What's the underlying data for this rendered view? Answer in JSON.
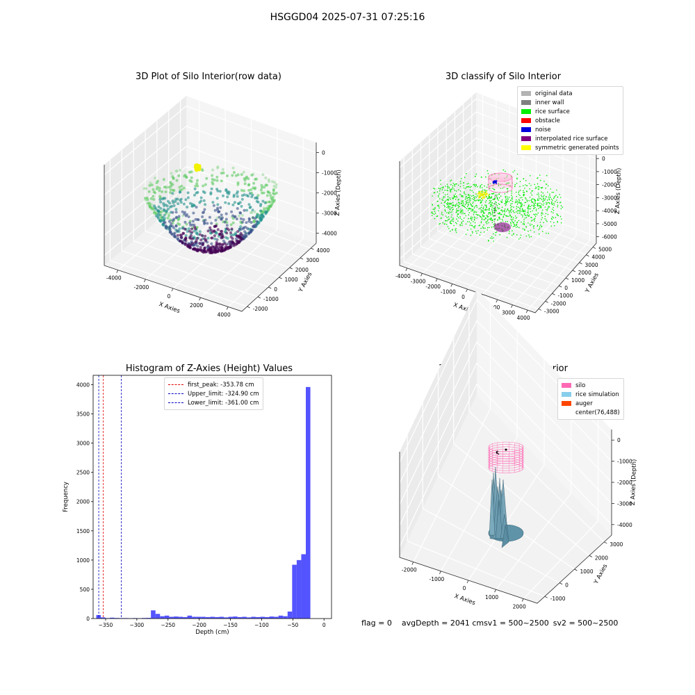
{
  "figure_title": "HSGGD04 2025-07-31 07:25:16",
  "status": {
    "flag": "flag = 0",
    "avg_depth": "avgDepth = 2041 cm",
    "sv1": "sv1 = 500~2500",
    "sv2": "sv2 = 500~2500"
  },
  "chart_data": [
    {
      "id": "raw",
      "type": "scatter",
      "title": "3D Plot of Silo Interior(row data)",
      "xlabel": "X Axies",
      "ylabel": "Y Axies",
      "zlabel": "Z Axies (Depth)",
      "x_ticks": [
        "-4000",
        "-2000",
        "0",
        "2000",
        "4000"
      ],
      "y_ticks": [
        "-2000",
        "-1000",
        "0",
        "1000",
        "2000",
        "3000",
        "4000"
      ],
      "z_ticks": [
        "0",
        "-1000",
        "-2000",
        "-3000",
        "-4000"
      ],
      "colormap": [
        "#440154",
        "#3b528b",
        "#21918c",
        "#5ec962",
        "#9fdba0"
      ],
      "highlight_color": "#f2f200"
    },
    {
      "id": "classify",
      "type": "scatter",
      "title": "3D classify of Silo Interior",
      "xlabel": "X Axies",
      "ylabel": "Y Axies",
      "zlabel": "Z Axies (Depth)",
      "x_ticks": [
        "-4000",
        "-3000",
        "-2000",
        "-1000",
        "0",
        "1000",
        "2000",
        "3000",
        "4000"
      ],
      "y_ticks": [
        "-3000",
        "-2000",
        "-1000",
        "0",
        "1000",
        "2000",
        "3000",
        "4000",
        "5000"
      ],
      "z_ticks": [
        "1000",
        "0",
        "-1000",
        "-2000",
        "-3000",
        "-4000",
        "-5000",
        "-6000"
      ],
      "legend": [
        {
          "label": "original data",
          "color": "#b3b3b3"
        },
        {
          "label": "inner wall",
          "color": "#808080"
        },
        {
          "label": "rice surface",
          "color": "#00ee00"
        },
        {
          "label": "obstacle",
          "color": "#ff0000"
        },
        {
          "label": "noise",
          "color": "#0000dd"
        },
        {
          "label": "interpolated rice surface",
          "color": "#800080"
        },
        {
          "label": "symmetric generated points",
          "color": "#ffff00"
        }
      ]
    },
    {
      "id": "hist",
      "type": "bar",
      "title": "Histogram of Z-Axies (Height) Values",
      "xlabel": "Depth (cm)",
      "ylabel": "Frequency",
      "xlim": [
        -370,
        12
      ],
      "ylim": [
        0,
        4160
      ],
      "x_ticks": [
        -350,
        -300,
        -250,
        -200,
        -150,
        -100,
        -50,
        0
      ],
      "y_ticks": [
        0,
        500,
        1000,
        1500,
        2000,
        2500,
        3000,
        3500,
        4000
      ],
      "bin_start": -365,
      "bin_width": 7.3,
      "values": [
        60,
        20,
        8,
        15,
        10,
        8,
        8,
        6,
        8,
        6,
        10,
        12,
        140,
        80,
        40,
        50,
        30,
        35,
        30,
        25,
        50,
        30,
        30,
        30,
        25,
        30,
        25,
        30,
        20,
        30,
        35,
        25,
        30,
        20,
        30,
        25,
        30,
        25,
        35,
        30,
        50,
        40,
        120,
        920,
        1000,
        1100,
        3960
      ],
      "bar_color": "#4b4bff",
      "lines": [
        {
          "label": "first_peak: -353.78 cm",
          "x": -353.78,
          "color": "#e00000"
        },
        {
          "label": "Upper_limit: -324.90 cm",
          "x": -324.9,
          "color": "#0000c0"
        },
        {
          "label": "Lower_limit: -361.00 cm",
          "x": -361.0,
          "color": "#0000c0"
        }
      ]
    },
    {
      "id": "sim",
      "type": "scatter",
      "title": "3D simulation of Silo Interior",
      "xlabel": "X Axies",
      "ylabel": "Y Axies",
      "zlabel": "Z Axies (Depth)",
      "x_ticks": [
        "-2000",
        "-1000",
        "0",
        "1000",
        "2000"
      ],
      "y_ticks": [
        "-1000",
        "0",
        "1000",
        "2000",
        "3000"
      ],
      "z_ticks": [
        "0",
        "-1000",
        "-2000",
        "-3000",
        "-4000"
      ],
      "legend": [
        {
          "label": "silo",
          "color": "#ff69b4"
        },
        {
          "label": "rice simulation",
          "color": "#87ceeb"
        },
        {
          "label": "auger",
          "color": "#ff4500"
        },
        {
          "label": "center(76,488)",
          "color": "#ffffff"
        }
      ]
    }
  ]
}
